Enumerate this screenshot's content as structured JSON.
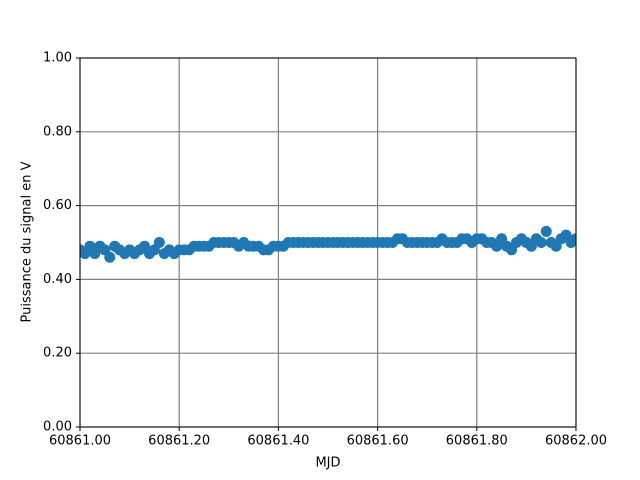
{
  "chart_data": {
    "type": "scatter",
    "x_label": "MJD",
    "y_label": "Puissance du signal en V",
    "color": "#1f77b4",
    "grid": true,
    "xlim": [
      60861,
      60862
    ],
    "ylim": [
      0,
      1
    ],
    "xticks": [
      {
        "value": 60861,
        "label": "60861.00"
      },
      {
        "value": 60861.2,
        "label": "60861.20"
      },
      {
        "value": 60861.4,
        "label": "60861.40"
      },
      {
        "value": 60861.6,
        "label": "60861.60"
      },
      {
        "value": 60861.8,
        "label": "60861.80"
      },
      {
        "value": 60862,
        "label": "60862.00"
      }
    ],
    "yticks": [
      {
        "value": 0,
        "label": "0.00"
      },
      {
        "value": 0.2,
        "label": "0.20"
      },
      {
        "value": 0.4,
        "label": "0.40"
      },
      {
        "value": 0.6,
        "label": "0.60"
      },
      {
        "value": 0.8,
        "label": "0.80"
      },
      {
        "value": 1,
        "label": "1.00"
      }
    ],
    "x": [
      60861.0,
      60861.01,
      60861.02,
      60861.03,
      60861.04,
      60861.05,
      60861.06,
      60861.07,
      60861.08,
      60861.09,
      60861.1,
      60861.11,
      60861.12,
      60861.13,
      60861.14,
      60861.15,
      60861.16,
      60861.17,
      60861.18,
      60861.19,
      60861.2,
      60861.21,
      60861.22,
      60861.23,
      60861.24,
      60861.25,
      60861.26,
      60861.27,
      60861.28,
      60861.29,
      60861.3,
      60861.31,
      60861.32,
      60861.33,
      60861.34,
      60861.35,
      60861.36,
      60861.37,
      60861.38,
      60861.39,
      60861.4,
      60861.41,
      60861.42,
      60861.43,
      60861.44,
      60861.45,
      60861.46,
      60861.47,
      60861.48,
      60861.49,
      60861.5,
      60861.51,
      60861.52,
      60861.53,
      60861.54,
      60861.55,
      60861.56,
      60861.57,
      60861.58,
      60861.59,
      60861.6,
      60861.61,
      60861.62,
      60861.63,
      60861.64,
      60861.65,
      60861.66,
      60861.67,
      60861.68,
      60861.69,
      60861.7,
      60861.71,
      60861.72,
      60861.73,
      60861.74,
      60861.75,
      60861.76,
      60861.77,
      60861.78,
      60861.79,
      60861.8,
      60861.81,
      60861.82,
      60861.83,
      60861.84,
      60861.85,
      60861.86,
      60861.87,
      60861.88,
      60861.89,
      60861.9,
      60861.91,
      60861.92,
      60861.93,
      60861.94,
      60861.95,
      60861.96,
      60861.97,
      60861.98,
      60861.99,
      60862.0
    ],
    "values": [
      0.48,
      0.47,
      0.49,
      0.47,
      0.49,
      0.48,
      0.46,
      0.49,
      0.48,
      0.47,
      0.48,
      0.47,
      0.48,
      0.49,
      0.47,
      0.48,
      0.5,
      0.47,
      0.48,
      0.47,
      0.48,
      0.48,
      0.48,
      0.49,
      0.49,
      0.49,
      0.49,
      0.5,
      0.5,
      0.5,
      0.5,
      0.5,
      0.49,
      0.5,
      0.49,
      0.49,
      0.49,
      0.48,
      0.48,
      0.49,
      0.49,
      0.49,
      0.5,
      0.5,
      0.5,
      0.5,
      0.5,
      0.5,
      0.5,
      0.5,
      0.5,
      0.5,
      0.5,
      0.5,
      0.5,
      0.5,
      0.5,
      0.5,
      0.5,
      0.5,
      0.5,
      0.5,
      0.5,
      0.5,
      0.51,
      0.51,
      0.5,
      0.5,
      0.5,
      0.5,
      0.5,
      0.5,
      0.5,
      0.51,
      0.5,
      0.5,
      0.5,
      0.51,
      0.51,
      0.5,
      0.51,
      0.51,
      0.5,
      0.5,
      0.49,
      0.51,
      0.49,
      0.48,
      0.5,
      0.51,
      0.5,
      0.49,
      0.51,
      0.5,
      0.53,
      0.5,
      0.49,
      0.51,
      0.52,
      0.5,
      0.51
    ]
  }
}
